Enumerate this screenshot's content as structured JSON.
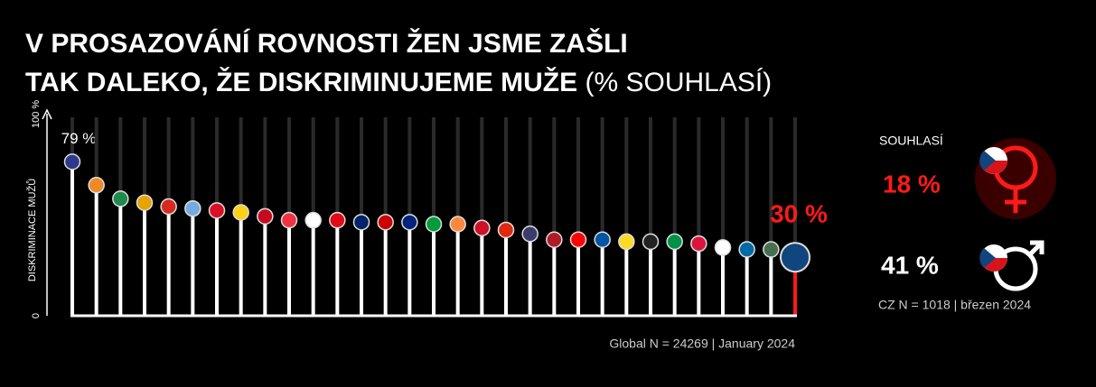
{
  "chart_data": {
    "type": "lollipop",
    "title_lines": [
      "V PROSAZOVÁNÍ ROVNOSTI ŽEN JSME ZAŠLI",
      "TAK DALEKO, ŽE DISKRIMINUJEME MUŽE"
    ],
    "subtitle": "(% SOUHLASÍ)",
    "y_label": "DISKRIMINACE MUŽŮ",
    "ylim": [
      0,
      100
    ],
    "yticks": [
      0,
      {
        "value": 100,
        "label": "100 %"
      }
    ],
    "values": [
      79,
      67,
      60,
      58,
      56,
      55,
      54,
      53,
      51,
      49,
      49,
      49,
      48,
      48,
      48,
      47,
      47,
      45,
      44,
      42,
      39,
      39,
      39,
      38,
      38,
      38,
      37,
      35,
      34,
      34,
      30
    ],
    "value_labels": [
      "79 %",
      null,
      null,
      null,
      null,
      null,
      null,
      null,
      null,
      null,
      null,
      null,
      null,
      null,
      null,
      null,
      null,
      null,
      null,
      null,
      null,
      null,
      null,
      null,
      null,
      null,
      null,
      null,
      null,
      null,
      "30 %"
    ],
    "colors": [
      "#2d3a8c",
      "#f08a24",
      "#1e8a4c",
      "#e7a400",
      "#d52b1e",
      "#74acdf",
      "#d91023",
      "#fcd116",
      "#c60b1e",
      "#ef3340",
      "#ffffff",
      "#e30a17",
      "#012169",
      "#cc0001",
      "#00247d",
      "#009c3b",
      "#ff883e",
      "#ce1126",
      "#de2910",
      "#3c3b6e",
      "#ae1c28",
      "#ff0000",
      "#0055a4",
      "#fdda24",
      "#222222",
      "#009246",
      "#dc143c",
      "#ffffff",
      "#006aa7",
      "#477050",
      "#11457e"
    ],
    "highlight_color": "#ff1a1a",
    "stick_color": "#ffffff",
    "track_color": "#2a2a2a",
    "footnote": "Global N = 24269 | January 2024",
    "side_panel": {
      "title": "SOUHLASÍ",
      "women": "18 %",
      "men": "41 %",
      "note": "CZ N = 1018 | březen 2024"
    }
  }
}
